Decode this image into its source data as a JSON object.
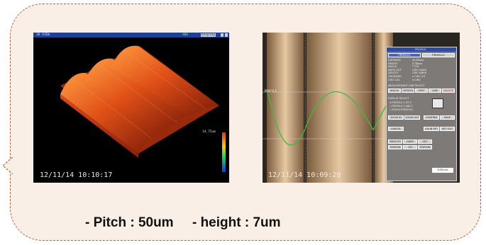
{
  "slide": {
    "caption": "- Pitch : 50um     - height : 7um"
  },
  "shot_3d": {
    "title": "3D VIEW",
    "status": "ABS",
    "mode": "Display",
    "scale_label": "14.75um",
    "timestamp": "12/11/14 10:10:17",
    "colors": {
      "surface": "#d8401a",
      "highlight": "#ff8a3a",
      "background": "#000000"
    }
  },
  "shot_profile": {
    "timestamp": "12/11/14 10:09:20",
    "cursor_label": "PROFILE",
    "scale_value": "5.000 um",
    "colors": {
      "profile_line": "#3dbb3d",
      "surface": "#c9a57c"
    },
    "panel": {
      "title": "PROFILE",
      "tab_left": "PROFILE1",
      "tab_right": "PROFILE2",
      "rows": [
        {
          "label": "DISTANCE",
          "value": "49.994um"
        },
        {
          "label": "HEIGHT",
          "value": "6.786um"
        },
        {
          "label": "ANGLE",
          "value": "7.718"
        },
        {
          "label": "MARK DOT",
          "value": "CIRC MARK"
        },
        {
          "label": "DELETE",
          "value": "CIRC MARK"
        },
        {
          "label": "CROSSING",
          "value": "● CIRC 4.5"
        },
        {
          "label": "CIRC CAL",
          "value": "● CIRC"
        }
      ],
      "measure_label": "MEASUREMENT LINE SELECT",
      "line_buttons": [
        "ANGLE",
        "HORIZON",
        "VERT",
        "LINE",
        "DELETE"
      ],
      "display_label": "DISPLAY SELECT",
      "display_options": [
        "● PROFILE 1 OR 2",
        "○ PROFILE 1 AND 2",
        "○ ROUGH PROFILE"
      ],
      "buttons_a": [
        "ZOOM IN",
        "ZOOM OUT"
      ],
      "buttons_b": [
        "CONFIRM",
        "SAVE",
        "CANCEL"
      ],
      "buttons_c": [
        "CALIB SET",
        "SET OUT"
      ],
      "buttons_d": [
        "SMOOTH",
        "DARK",
        "GET"
      ],
      "buttons_e": [
        "STATION",
        "ON",
        "STATION"
      ],
      "footer_value": "5.000 um"
    }
  }
}
